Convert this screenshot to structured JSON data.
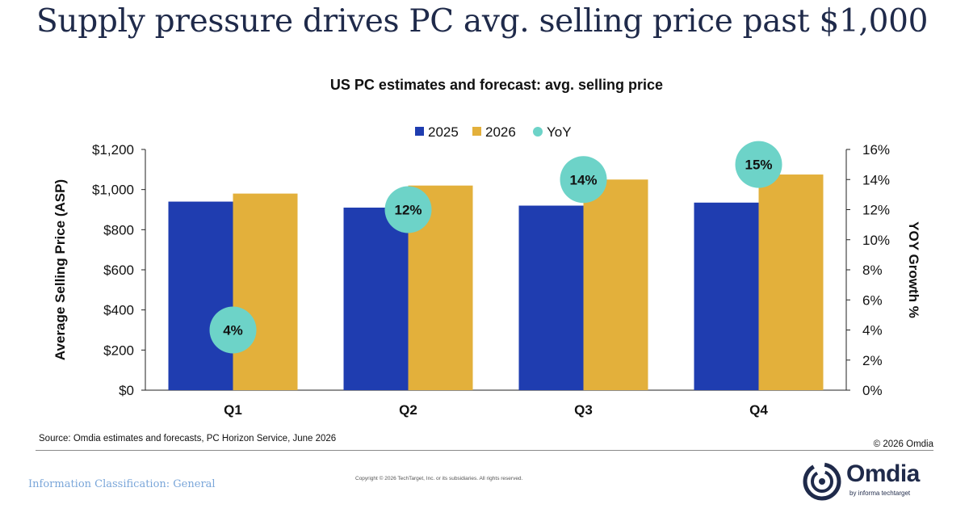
{
  "slide": {
    "headline": "Supply pressure drives PC avg. selling price past $1,000",
    "source": "Source: Omdia estimates and forecasts, PC Horizon Service, June 2026",
    "copyright_right": "© 2026 Omdia",
    "copyright_center": "Copyright © 2026 TechTarget, Inc. or its subsidiaries. All rights reserved.",
    "classification": "Information Classification: General",
    "logo_word": "Omdia",
    "logo_sub": "by informa techtarget"
  },
  "chart_data": {
    "type": "bar",
    "title": "US PC estimates and forecast: avg. selling price",
    "categories": [
      "Q1",
      "Q2",
      "Q3",
      "Q4"
    ],
    "series": [
      {
        "name": "2025",
        "color": "#1f3db0",
        "values": [
          940,
          910,
          920,
          935
        ]
      },
      {
        "name": "2026",
        "color": "#e3b03b",
        "values": [
          980,
          1020,
          1050,
          1075
        ]
      }
    ],
    "yoy": {
      "name": "YoY",
      "color": "#6dd3c8",
      "values": [
        4,
        12,
        14,
        15
      ],
      "labels": [
        "4%",
        "12%",
        "14%",
        "15%"
      ]
    },
    "ylabel": "Average Selling Price (ASP)",
    "y2label": "YOY Growth %",
    "ylim": [
      0,
      1200
    ],
    "y2lim": [
      0,
      16
    ],
    "yticks": [
      "$0",
      "$200",
      "$400",
      "$600",
      "$800",
      "$1,000",
      "$1,200"
    ],
    "y2ticks": [
      "0%",
      "2%",
      "4%",
      "6%",
      "8%",
      "10%",
      "12%",
      "14%",
      "16%"
    ],
    "legend_position": "top-center",
    "grid": false
  }
}
